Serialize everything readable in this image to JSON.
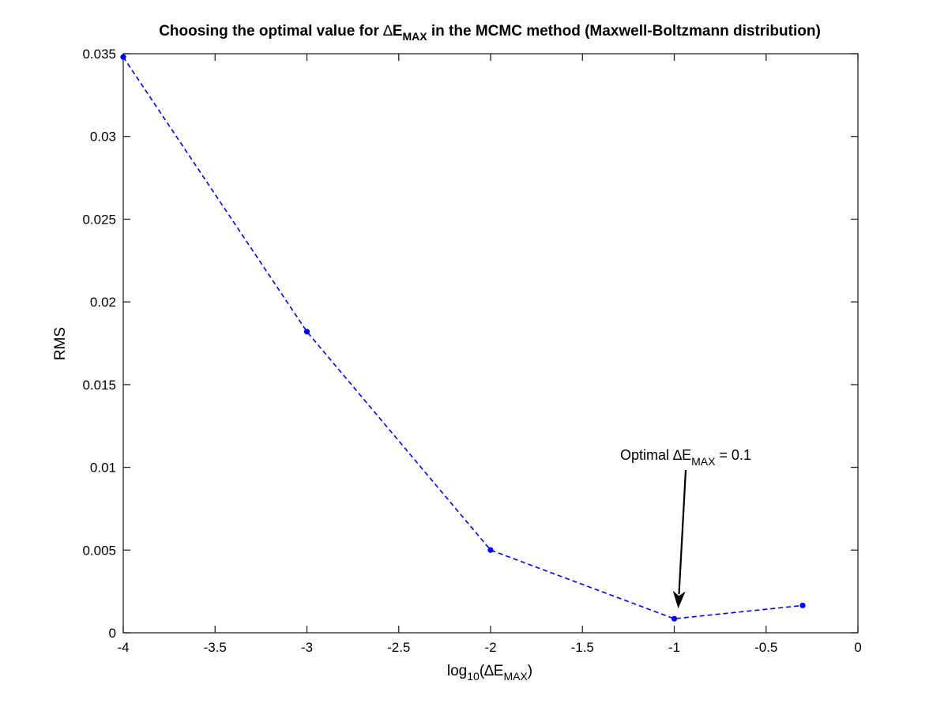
{
  "chart_data": {
    "type": "line",
    "title": {
      "prefix": "Choosing the optimal value for ",
      "delta": "∆",
      "e": "E",
      "sub": "MAX",
      "suffix": " in the MCMC method (Maxwell-Boltzmann distribution)"
    },
    "xlabel": {
      "prefix": "log",
      "base": "10",
      "open": "(",
      "delta": "∆",
      "e": "E",
      "sub": "MAX",
      "close": ")"
    },
    "ylabel": "RMS",
    "xlim": [
      -4,
      0
    ],
    "ylim": [
      0,
      0.035
    ],
    "xticks": [
      -4,
      -3.5,
      -3,
      -2.5,
      -2,
      -1.5,
      -1,
      -0.5,
      0
    ],
    "xtick_labels": [
      "-4",
      "-3.5",
      "-3",
      "-2.5",
      "-2",
      "-1.5",
      "-1",
      "-0.5",
      "0"
    ],
    "yticks": [
      0,
      0.005,
      0.01,
      0.015,
      0.02,
      0.025,
      0.03,
      0.035
    ],
    "ytick_labels": [
      "0",
      "0.005",
      "0.01",
      "0.015",
      "0.02",
      "0.025",
      "0.03",
      "0.035"
    ],
    "grid": false,
    "series": [
      {
        "color": "#0000ff",
        "line_style": "dashed",
        "marker": "dot",
        "x": [
          -4,
          -3,
          -2,
          -1,
          -0.301
        ],
        "y": [
          0.0348,
          0.0182,
          0.005,
          0.00085,
          0.00165
        ]
      }
    ],
    "annotation": {
      "prefix": "Optimal ",
      "delta": "∆",
      "e": "E",
      "sub": "MAX",
      "suffix": " = 0.1",
      "arrow_target": {
        "x": -1,
        "y": 0.00085
      }
    }
  }
}
